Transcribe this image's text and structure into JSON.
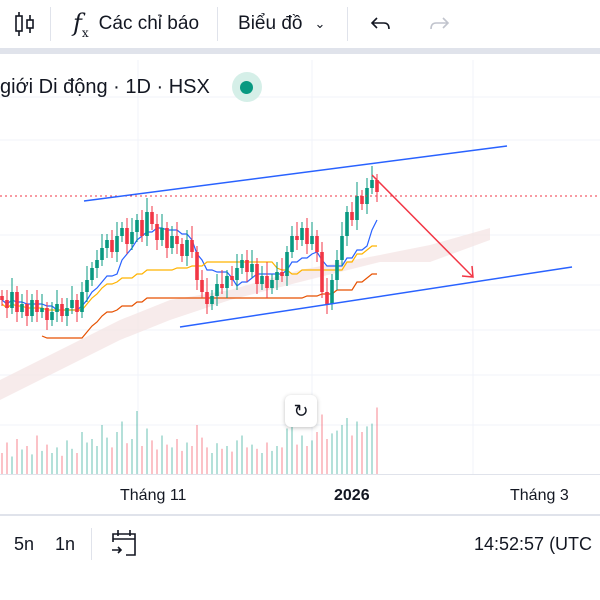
{
  "toolbar": {
    "indicators_label": "Các chỉ báo",
    "chart_label": "Biểu đồ"
  },
  "legend": {
    "title": "giới Di động · 1D · HSX"
  },
  "time_axis": {
    "labels": [
      "Tháng 11",
      "2026",
      "Tháng 3"
    ]
  },
  "bottom": {
    "range_5d": "5n",
    "range_1d": "1n",
    "clock": "14:52:57 (UTC"
  },
  "colors": {
    "up": "#089981",
    "down": "#f23645",
    "accent": "#2962ff",
    "status": "#089981"
  },
  "chart_data": {
    "type": "candlestick",
    "closes": [
      50,
      48,
      52,
      47,
      49,
      46,
      50,
      47,
      48,
      45,
      47,
      49,
      46,
      48,
      50,
      47,
      52,
      55,
      58,
      60,
      63,
      65,
      62,
      66,
      68,
      64,
      67,
      70,
      66,
      72,
      69,
      65,
      68,
      63,
      66,
      64,
      61,
      65,
      62,
      55,
      52,
      49,
      51,
      54,
      53,
      56,
      55,
      58,
      60,
      57,
      59,
      54,
      56,
      53,
      55,
      57,
      56,
      62,
      66,
      65,
      68,
      64,
      66,
      62,
      52,
      49,
      55,
      60,
      66,
      72,
      70,
      76,
      74,
      78,
      80,
      77
    ],
    "volumes": [
      30,
      45,
      25,
      50,
      35,
      40,
      28,
      55,
      33,
      42,
      30,
      38,
      26,
      48,
      36,
      30,
      60,
      45,
      50,
      40,
      70,
      52,
      38,
      60,
      75,
      44,
      50,
      90,
      40,
      65,
      48,
      35,
      55,
      42,
      38,
      50,
      33,
      45,
      40,
      70,
      52,
      38,
      30,
      44,
      36,
      40,
      32,
      48,
      55,
      38,
      42,
      36,
      30,
      45,
      33,
      40,
      38,
      65,
      70,
      42,
      55,
      40,
      48,
      60,
      85,
      50,
      58,
      62,
      70,
      80,
      55,
      75,
      60,
      68,
      72,
      95
    ],
    "last_price": 81
  }
}
